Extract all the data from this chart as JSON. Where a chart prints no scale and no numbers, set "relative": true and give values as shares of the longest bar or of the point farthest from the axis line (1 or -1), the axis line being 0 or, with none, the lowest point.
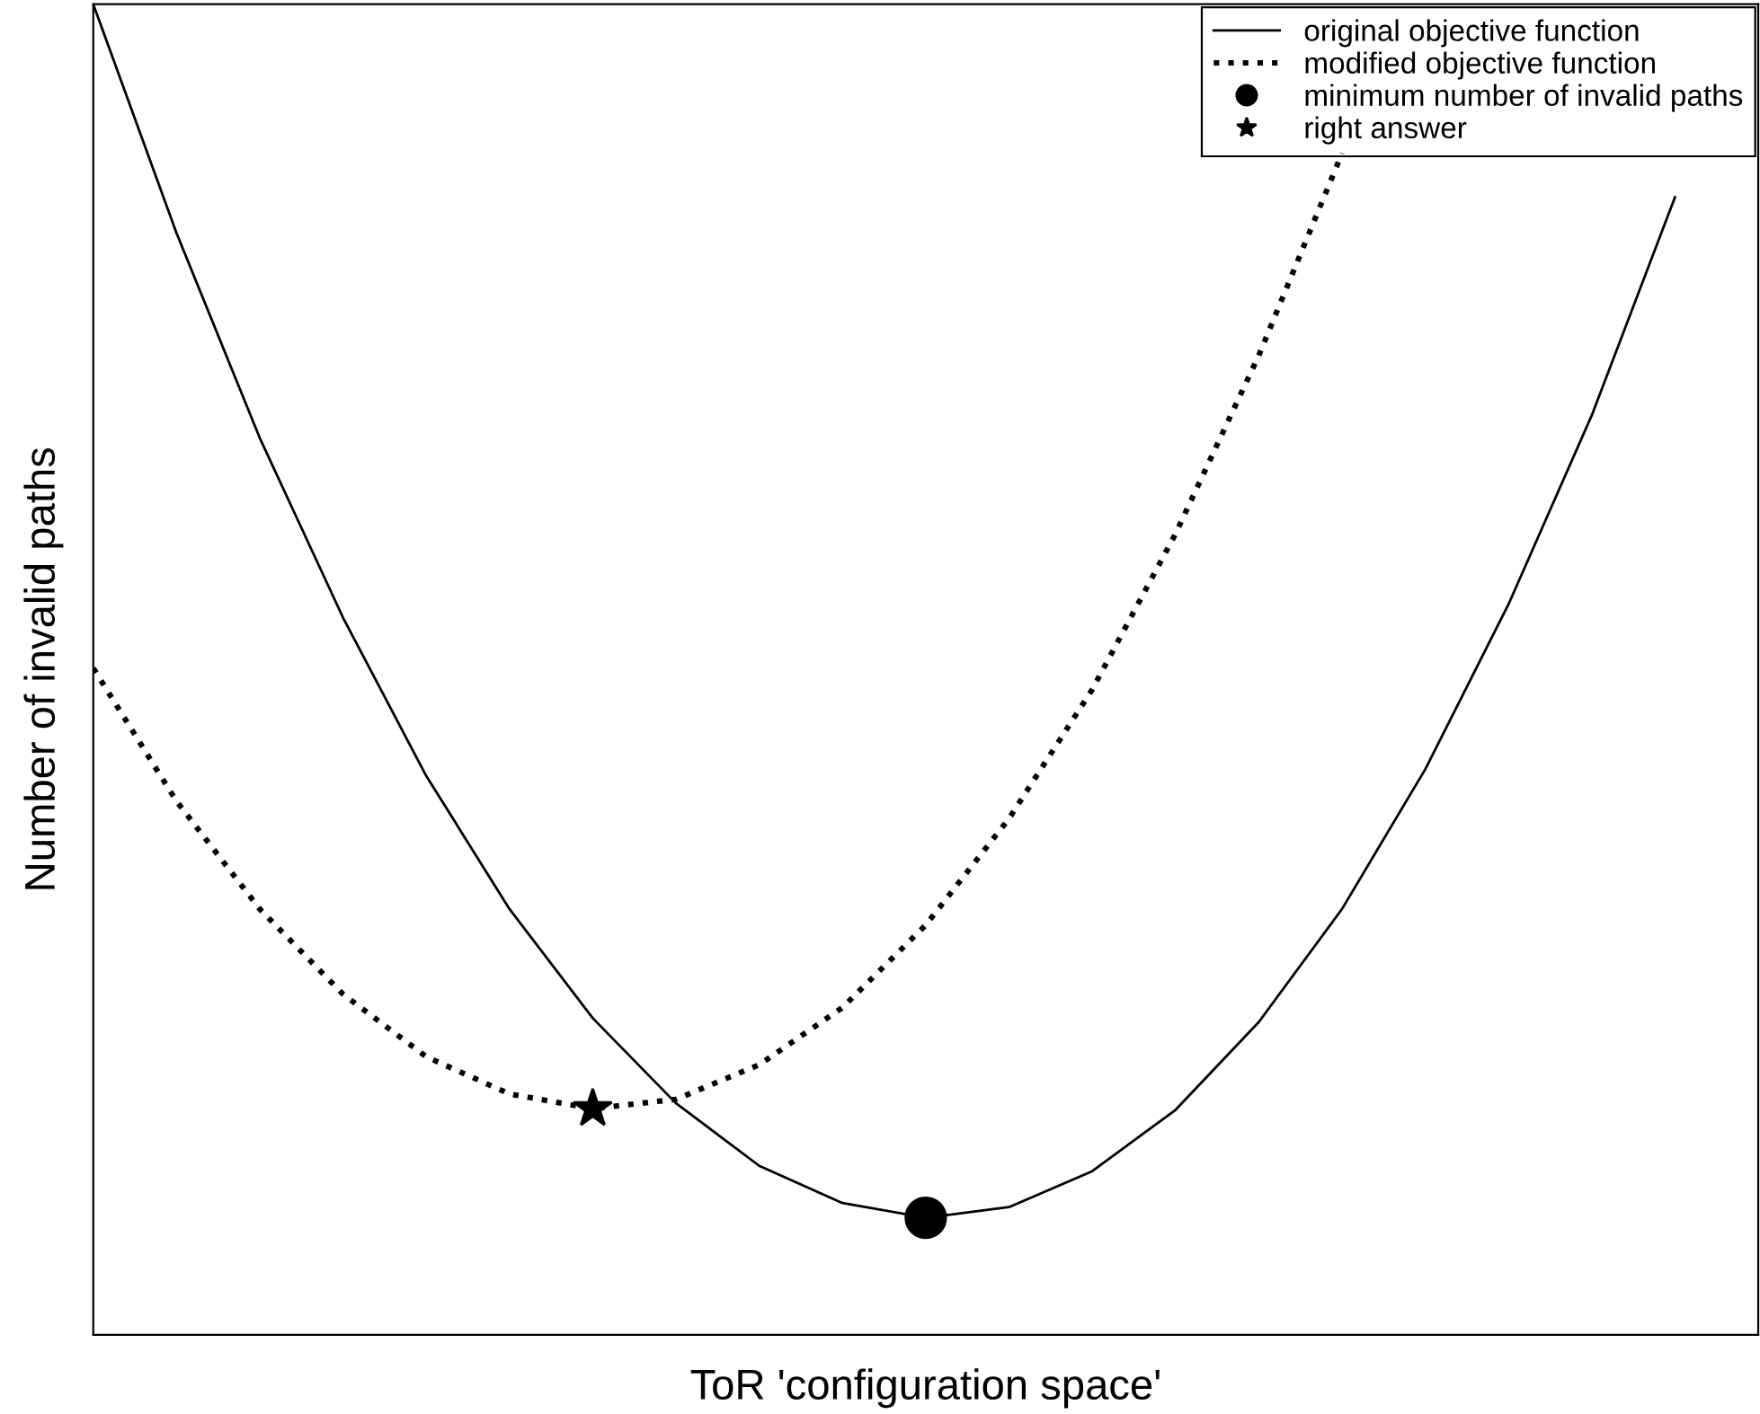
{
  "chart_data": {
    "type": "line",
    "relative": true,
    "xlabel": "ToR 'configuration space'",
    "ylabel": "Number of invalid paths",
    "categories": [
      null,
      null,
      null,
      null,
      null,
      null,
      null,
      null,
      null,
      null,
      null,
      null,
      null,
      null,
      null,
      null,
      null,
      null,
      null,
      null,
      null
    ],
    "grid": false,
    "legend": "top right",
    "series": [
      {
        "name": "original objective function",
        "color": "#000000",
        "line_style": "solid",
        "marker": "none",
        "values": [
          1.0,
          0.828,
          0.674,
          0.539,
          0.42,
          0.32,
          0.238,
          0.174,
          0.127,
          0.099,
          0.088,
          0.096,
          0.123,
          0.169,
          0.235,
          0.32,
          0.425,
          0.549,
          0.691,
          0.855,
          null
        ]
      },
      {
        "name": "modified objective function",
        "color": "#000000",
        "line_style": "dotted",
        "marker": "none",
        "values": [
          0.501,
          0.401,
          0.32,
          0.256,
          0.209,
          0.181,
          0.17,
          0.177,
          0.203,
          0.246,
          0.308,
          0.388,
          0.485,
          0.602,
          0.736,
          0.888,
          null,
          null,
          null,
          null,
          null
        ]
      },
      {
        "name": "minimum number of invalid paths",
        "color": "#000000",
        "marker": "circle",
        "values": [
          null,
          null,
          null,
          null,
          null,
          null,
          null,
          null,
          null,
          null,
          0.088,
          null,
          null,
          null,
          null,
          null,
          null,
          null,
          null,
          null,
          null
        ]
      },
      {
        "name": "right answer",
        "color": "#000000",
        "marker": "star",
        "values": [
          null,
          null,
          null,
          null,
          null,
          null,
          0.17,
          null,
          null,
          null,
          null,
          null,
          null,
          null,
          null,
          null,
          null,
          null,
          null,
          null,
          null
        ]
      }
    ]
  }
}
